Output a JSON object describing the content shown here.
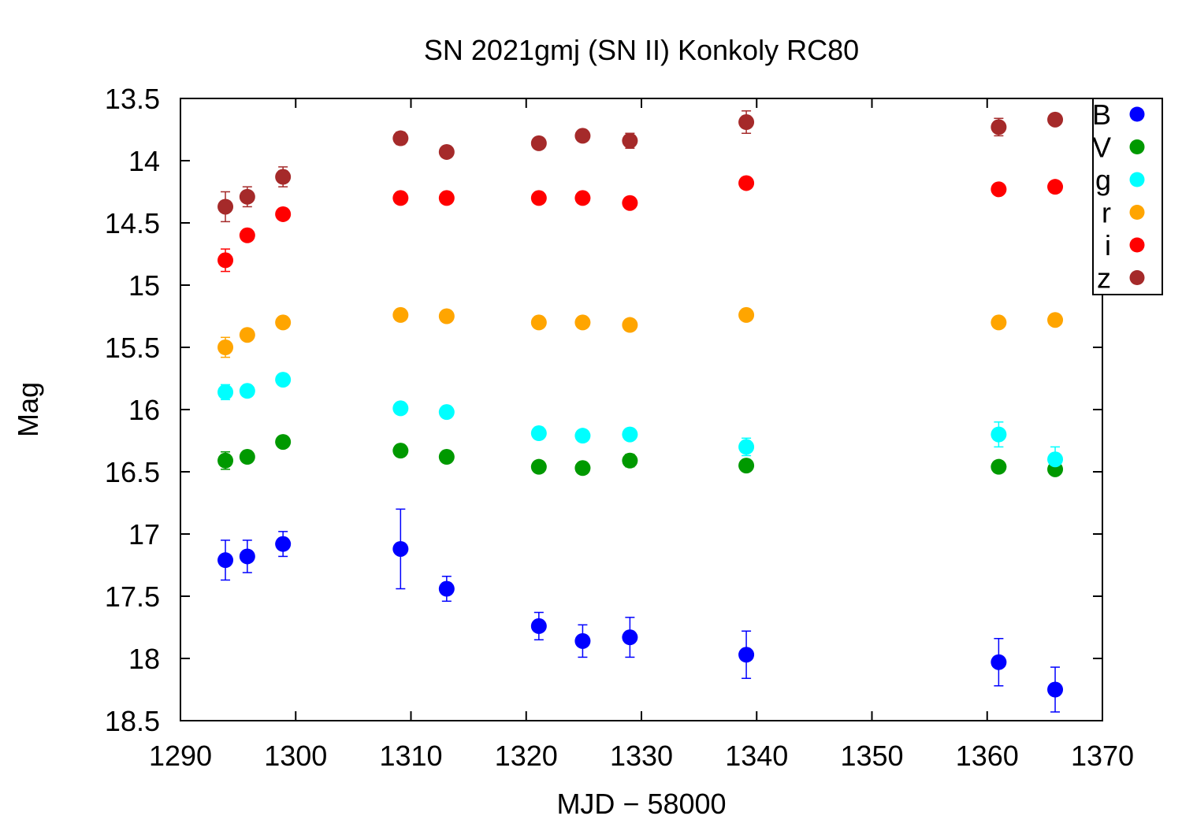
{
  "chart_data": {
    "type": "scatter",
    "title": "SN 2021gmj (SN II) Konkoly RC80",
    "xlabel": "MJD − 58000",
    "ylabel": "Mag",
    "xlim": [
      1290,
      1370
    ],
    "ylim": [
      18.5,
      13.5
    ],
    "y_inverted": true,
    "grid": false,
    "legend_position": "top-right",
    "x_ticks": [
      "1290",
      "1300",
      "1310",
      "1320",
      "1330",
      "1340",
      "1350",
      "1360",
      "1370"
    ],
    "y_ticks": [
      "13.5",
      "14",
      "14.5",
      "15",
      "15.5",
      "16",
      "16.5",
      "17",
      "17.5",
      "18",
      "18.5"
    ],
    "series": [
      {
        "name": "B",
        "color": "#0000ff",
        "points": [
          {
            "x": 1293.9,
            "y": 17.21,
            "err": 0.16
          },
          {
            "x": 1295.8,
            "y": 17.18,
            "err": 0.13
          },
          {
            "x": 1298.9,
            "y": 17.08,
            "err": 0.1
          },
          {
            "x": 1309.1,
            "y": 17.12,
            "err": 0.32
          },
          {
            "x": 1313.1,
            "y": 17.44,
            "err": 0.1
          },
          {
            "x": 1321.1,
            "y": 17.74,
            "err": 0.11
          },
          {
            "x": 1324.9,
            "y": 17.86,
            "err": 0.13
          },
          {
            "x": 1329.0,
            "y": 17.83,
            "err": 0.16
          },
          {
            "x": 1339.1,
            "y": 17.97,
            "err": 0.19
          },
          {
            "x": 1361.0,
            "y": 18.03,
            "err": 0.19
          },
          {
            "x": 1365.9,
            "y": 18.25,
            "err": 0.18
          }
        ]
      },
      {
        "name": "V",
        "color": "#009900",
        "points": [
          {
            "x": 1293.9,
            "y": 16.41,
            "err": 0.07
          },
          {
            "x": 1295.8,
            "y": 16.38,
            "err": 0.03
          },
          {
            "x": 1298.9,
            "y": 16.26,
            "err": 0.03
          },
          {
            "x": 1309.1,
            "y": 16.33,
            "err": 0.03
          },
          {
            "x": 1313.1,
            "y": 16.38,
            "err": 0.03
          },
          {
            "x": 1321.1,
            "y": 16.46,
            "err": 0.03
          },
          {
            "x": 1324.9,
            "y": 16.47,
            "err": 0.03
          },
          {
            "x": 1329.0,
            "y": 16.41,
            "err": 0.05
          },
          {
            "x": 1339.1,
            "y": 16.45,
            "err": 0.03
          },
          {
            "x": 1361.0,
            "y": 16.46,
            "err": 0.03
          },
          {
            "x": 1365.9,
            "y": 16.48,
            "err": 0.04
          }
        ]
      },
      {
        "name": "g",
        "color": "#00ffff",
        "points": [
          {
            "x": 1293.9,
            "y": 15.86,
            "err": 0.06
          },
          {
            "x": 1295.8,
            "y": 15.85,
            "err": 0.03
          },
          {
            "x": 1298.9,
            "y": 15.76,
            "err": 0.03
          },
          {
            "x": 1309.1,
            "y": 15.99,
            "err": 0.03
          },
          {
            "x": 1313.1,
            "y": 16.02,
            "err": 0.03
          },
          {
            "x": 1321.1,
            "y": 16.19,
            "err": 0.03
          },
          {
            "x": 1324.9,
            "y": 16.21,
            "err": 0.03
          },
          {
            "x": 1329.0,
            "y": 16.2,
            "err": 0.03
          },
          {
            "x": 1339.1,
            "y": 16.3,
            "err": 0.07
          },
          {
            "x": 1361.0,
            "y": 16.2,
            "err": 0.1
          },
          {
            "x": 1365.9,
            "y": 16.4,
            "err": 0.1
          }
        ]
      },
      {
        "name": "r",
        "color": "#ffa500",
        "points": [
          {
            "x": 1293.9,
            "y": 15.5,
            "err": 0.08
          },
          {
            "x": 1295.8,
            "y": 15.4,
            "err": 0.03
          },
          {
            "x": 1298.9,
            "y": 15.3,
            "err": 0.03
          },
          {
            "x": 1309.1,
            "y": 15.24,
            "err": 0.03
          },
          {
            "x": 1313.1,
            "y": 15.25,
            "err": 0.03
          },
          {
            "x": 1321.1,
            "y": 15.3,
            "err": 0.03
          },
          {
            "x": 1324.9,
            "y": 15.3,
            "err": 0.03
          },
          {
            "x": 1329.0,
            "y": 15.32,
            "err": 0.03
          },
          {
            "x": 1339.1,
            "y": 15.24,
            "err": 0.03
          },
          {
            "x": 1361.0,
            "y": 15.3,
            "err": 0.03
          },
          {
            "x": 1365.9,
            "y": 15.28,
            "err": 0.03
          }
        ]
      },
      {
        "name": "i",
        "color": "#ff0000",
        "points": [
          {
            "x": 1293.9,
            "y": 14.8,
            "err": 0.09
          },
          {
            "x": 1295.8,
            "y": 14.6,
            "err": 0.03
          },
          {
            "x": 1298.9,
            "y": 14.43,
            "err": 0.03
          },
          {
            "x": 1309.1,
            "y": 14.3,
            "err": 0.03
          },
          {
            "x": 1313.1,
            "y": 14.3,
            "err": 0.03
          },
          {
            "x": 1321.1,
            "y": 14.3,
            "err": 0.03
          },
          {
            "x": 1324.9,
            "y": 14.3,
            "err": 0.03
          },
          {
            "x": 1329.0,
            "y": 14.34,
            "err": 0.03
          },
          {
            "x": 1339.1,
            "y": 14.18,
            "err": 0.03
          },
          {
            "x": 1361.0,
            "y": 14.23,
            "err": 0.03
          },
          {
            "x": 1365.9,
            "y": 14.21,
            "err": 0.03
          }
        ]
      },
      {
        "name": "z",
        "color": "#a52a2a",
        "points": [
          {
            "x": 1293.9,
            "y": 14.37,
            "err": 0.12
          },
          {
            "x": 1295.8,
            "y": 14.29,
            "err": 0.08
          },
          {
            "x": 1298.9,
            "y": 14.13,
            "err": 0.08
          },
          {
            "x": 1309.1,
            "y": 13.82,
            "err": 0.05
          },
          {
            "x": 1313.1,
            "y": 13.93,
            "err": 0.03
          },
          {
            "x": 1321.1,
            "y": 13.86,
            "err": 0.03
          },
          {
            "x": 1324.9,
            "y": 13.8,
            "err": 0.03
          },
          {
            "x": 1329.0,
            "y": 13.84,
            "err": 0.06
          },
          {
            "x": 1339.1,
            "y": 13.69,
            "err": 0.09
          },
          {
            "x": 1361.0,
            "y": 13.73,
            "err": 0.07
          },
          {
            "x": 1365.9,
            "y": 13.67,
            "err": 0.03
          }
        ]
      }
    ]
  }
}
